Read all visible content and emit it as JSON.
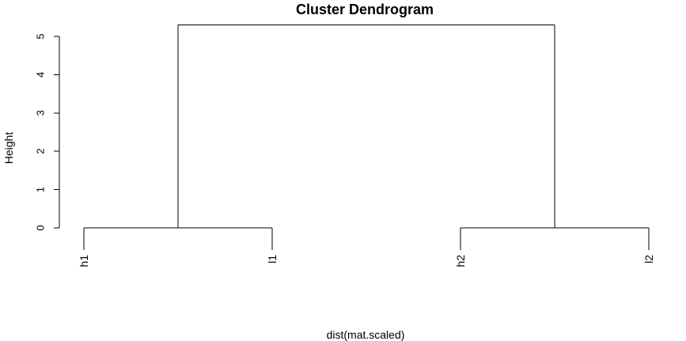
{
  "chart_data": {
    "type": "dendrogram",
    "title": "Cluster Dendrogram",
    "xlabel": "dist(mat.scaled)",
    "ylabel": "Height",
    "ylim": [
      0,
      5.3
    ],
    "y_ticks": [
      0,
      1,
      2,
      3,
      4,
      5
    ],
    "leaves": [
      "h1",
      "l1",
      "h2",
      "l2"
    ],
    "merges": [
      {
        "left": "h1",
        "right": "l1",
        "height": 0.0
      },
      {
        "left": "h2",
        "right": "l2",
        "height": 0.0
      },
      {
        "left": "h1+l1",
        "right": "h2+l2",
        "height": 5.3
      }
    ],
    "grid": false,
    "legend": "none"
  }
}
